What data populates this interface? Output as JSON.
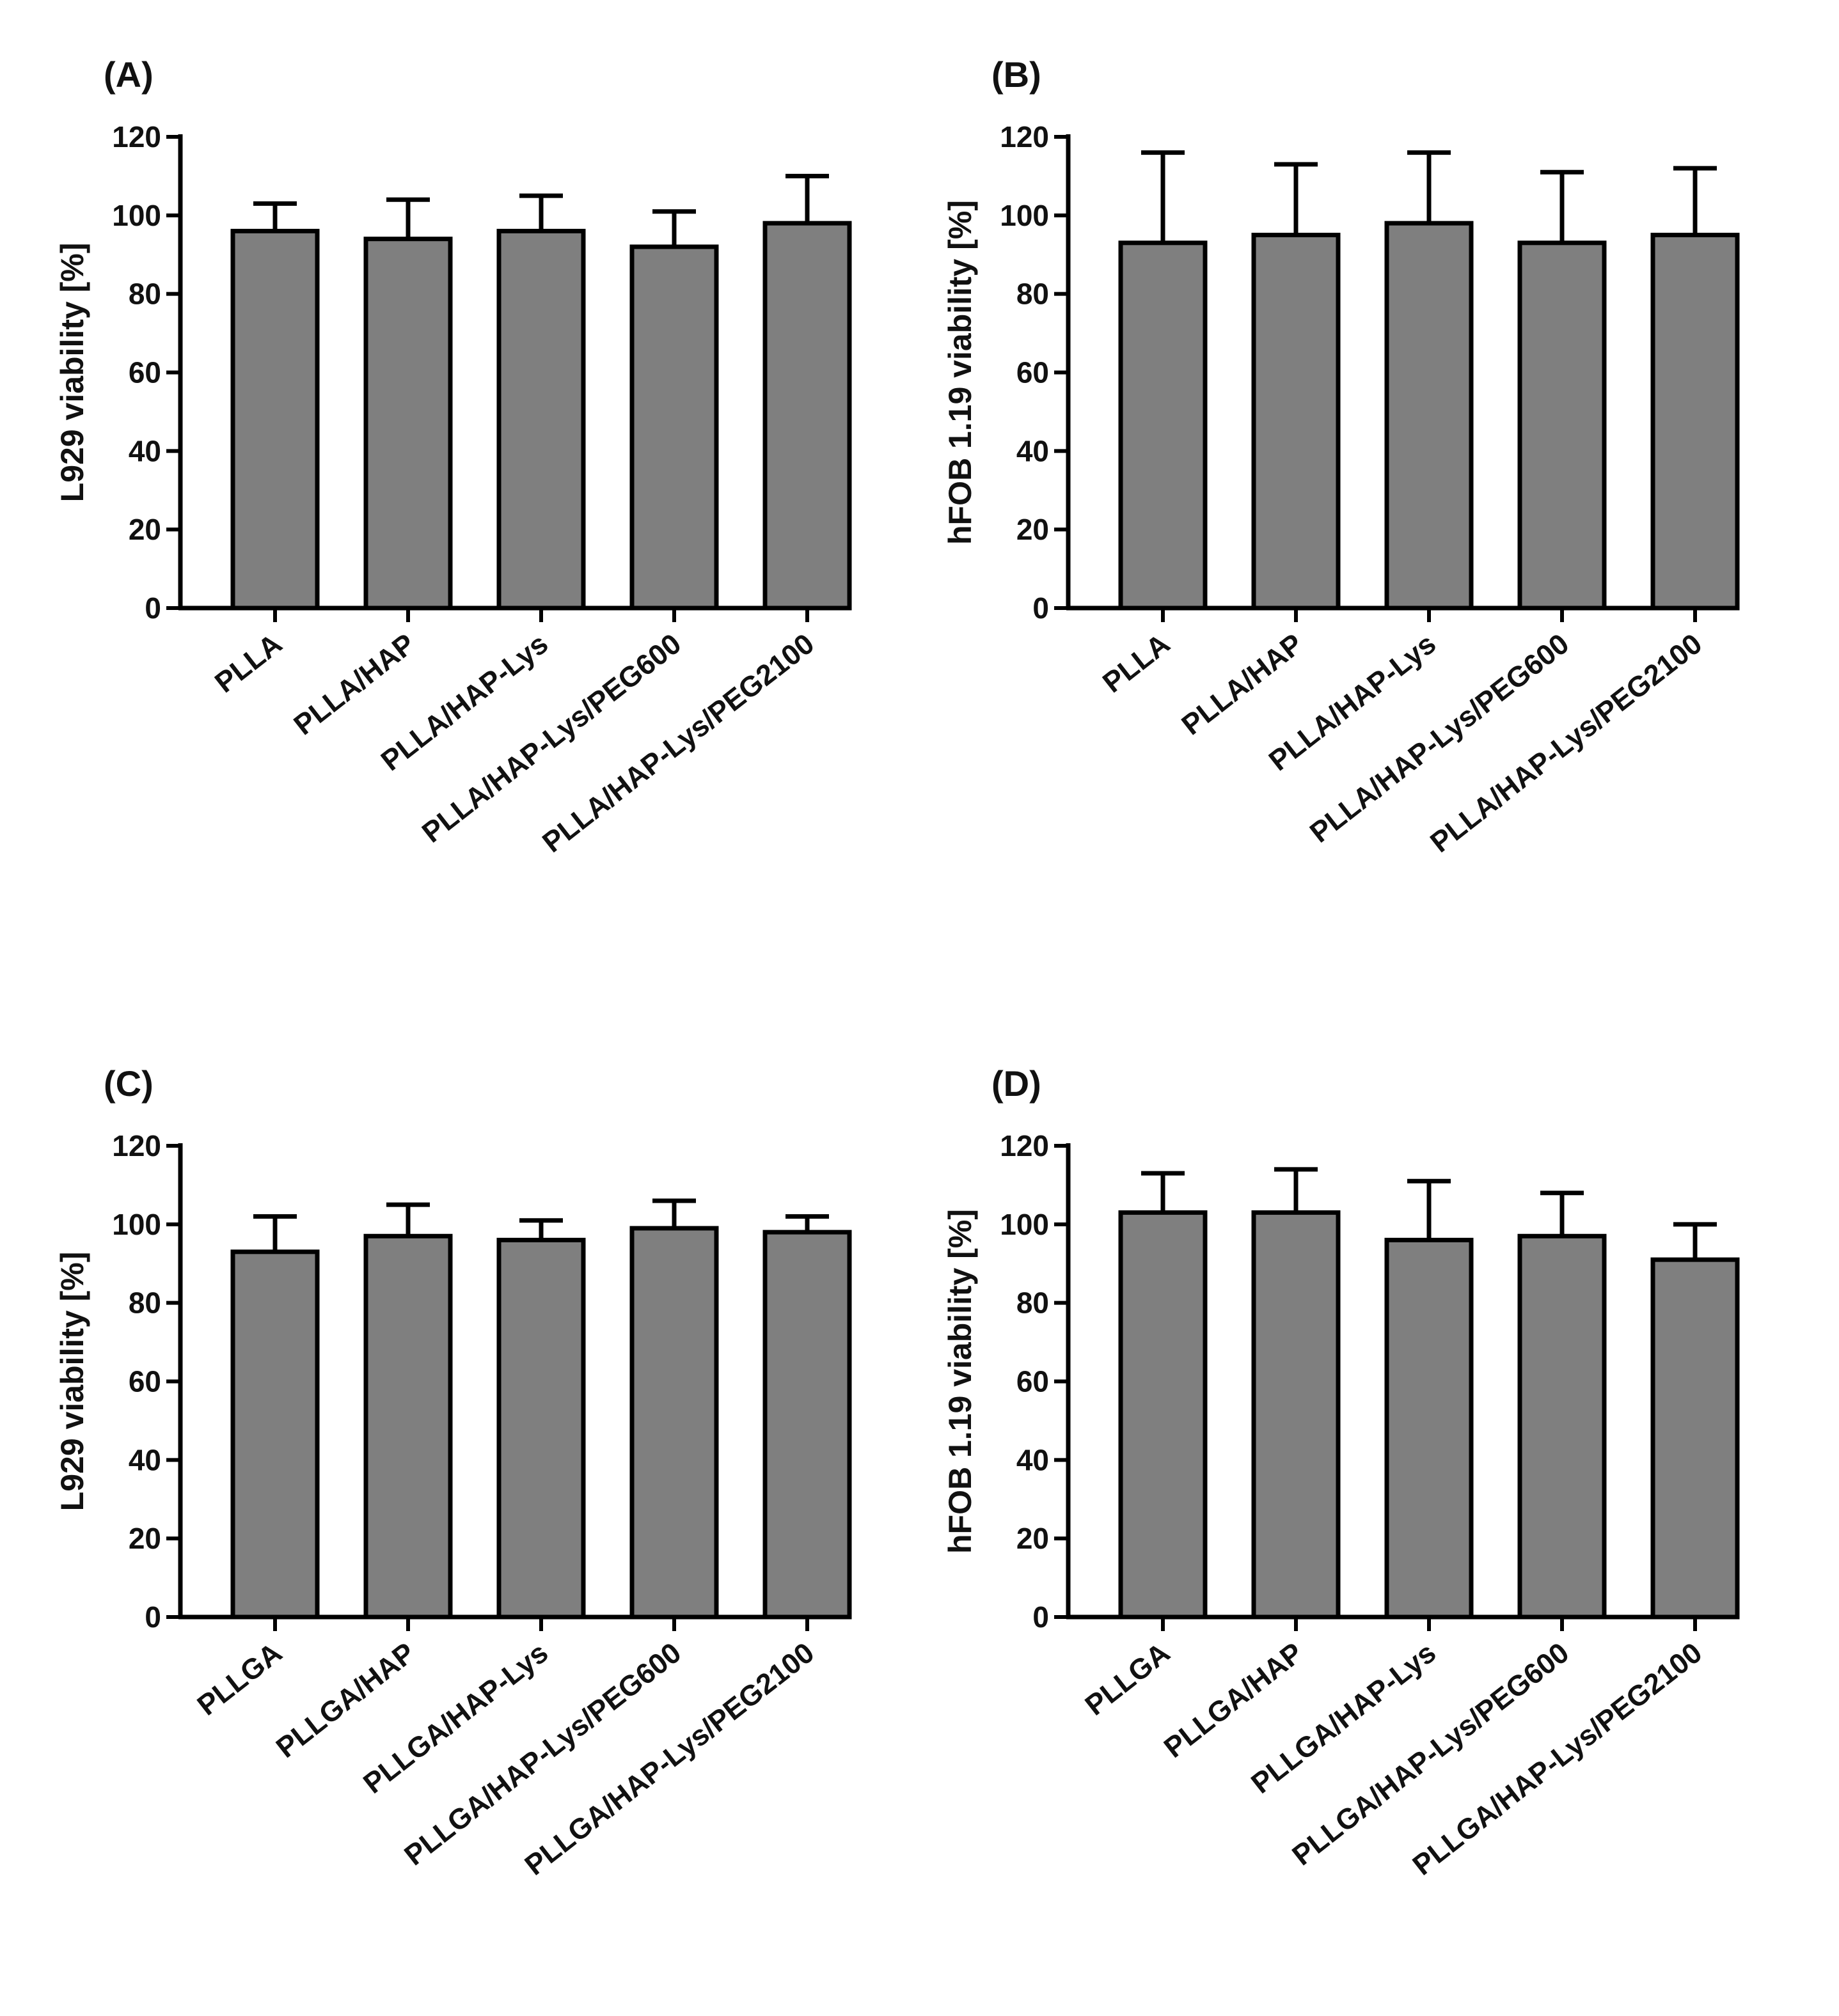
{
  "figure": {
    "colors": {
      "bar_fill": "#7f7f7f",
      "stroke": "#000000",
      "text": "#111111"
    }
  },
  "chart_data": [
    {
      "panel": "(A)",
      "type": "bar",
      "ylabel": "L929 viability [%]",
      "xlabel": "",
      "ylim": [
        0,
        120
      ],
      "yticks": [
        0,
        20,
        40,
        60,
        80,
        100,
        120
      ],
      "categories": [
        "PLLA",
        "PLLA/HAP",
        "PLLA/HAP-Lys",
        "PLLA/HAP-Lys/PEG600",
        "PLLA/HAP-Lys/PEG2100"
      ],
      "values": [
        96,
        94,
        96,
        92,
        98
      ],
      "errors": [
        7,
        10,
        9,
        9,
        12
      ]
    },
    {
      "panel": "(B)",
      "type": "bar",
      "ylabel": "hFOB 1.19 viability [%]",
      "xlabel": "",
      "ylim": [
        0,
        120
      ],
      "yticks": [
        0,
        20,
        40,
        60,
        80,
        100,
        120
      ],
      "categories": [
        "PLLA",
        "PLLA/HAP",
        "PLLA/HAP-Lys",
        "PLLA/HAP-Lys/PEG600",
        "PLLA/HAP-Lys/PEG2100"
      ],
      "values": [
        93,
        95,
        98,
        93,
        95
      ],
      "errors": [
        23,
        18,
        18,
        18,
        17
      ]
    },
    {
      "panel": "(C)",
      "type": "bar",
      "ylabel": "L929 viability [%]",
      "xlabel": "",
      "ylim": [
        0,
        120
      ],
      "yticks": [
        0,
        20,
        40,
        60,
        80,
        100,
        120
      ],
      "categories": [
        "PLLGA",
        "PLLGA/HAP",
        "PLLGA/HAP-Lys",
        "PLLGA/HAP-Lys/PEG600",
        "PLLGA/HAP-Lys/PEG2100"
      ],
      "values": [
        93,
        97,
        96,
        99,
        98
      ],
      "errors": [
        9,
        8,
        5,
        7,
        4
      ]
    },
    {
      "panel": "(D)",
      "type": "bar",
      "ylabel": "hFOB 1.19 viability [%]",
      "xlabel": "",
      "ylim": [
        0,
        120
      ],
      "yticks": [
        0,
        20,
        40,
        60,
        80,
        100,
        120
      ],
      "categories": [
        "PLLGA",
        "PLLGA/HAP",
        "PLLGA/HAP-Lys",
        "PLLGA/HAP-Lys/PEG600",
        "PLLGA/HAP-Lys/PEG2100"
      ],
      "values": [
        103,
        103,
        96,
        97,
        91
      ],
      "errors": [
        10,
        11,
        15,
        11,
        9
      ]
    }
  ]
}
